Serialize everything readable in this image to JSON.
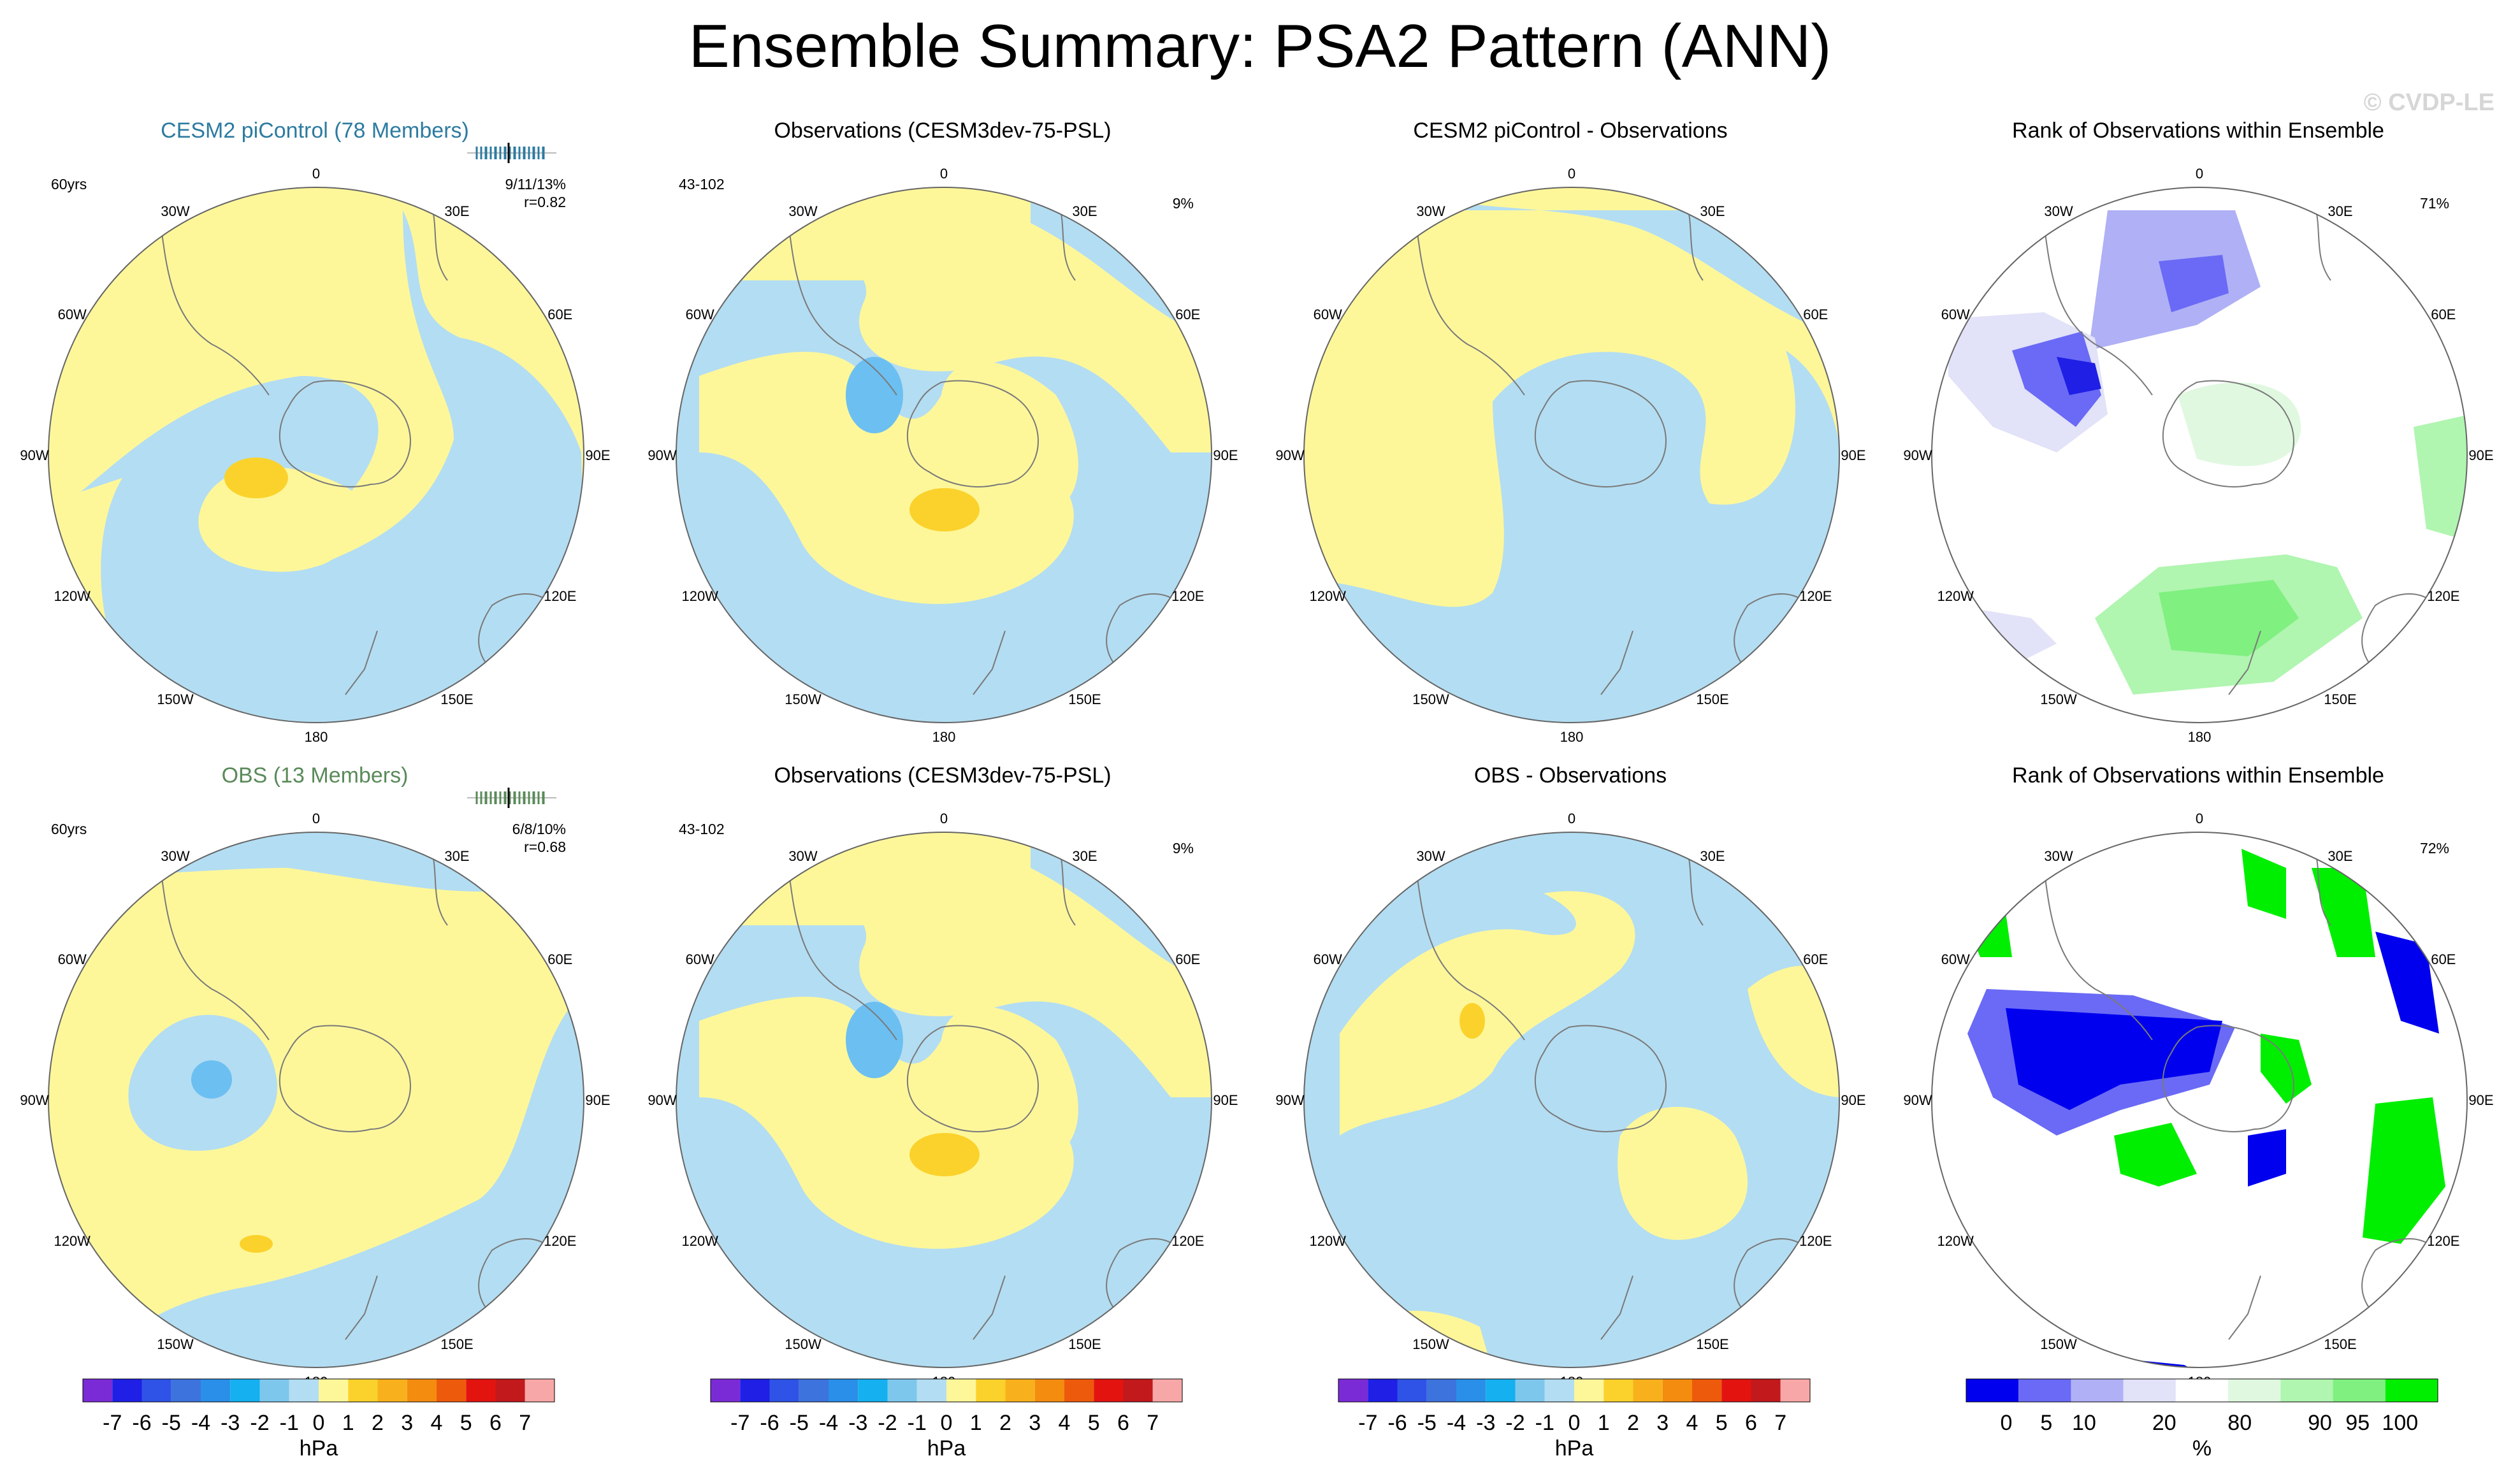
{
  "title": "Ensemble Summary: PSA2 Pattern (ANN)",
  "watermark": "© CVDP-LE",
  "lon_labels": [
    "0",
    "30E",
    "60E",
    "90E",
    "120E",
    "150E",
    "180",
    "150W",
    "120W",
    "90W",
    "60W",
    "30W"
  ],
  "colors": {
    "blue_fill": "#b3ddf2",
    "yellow_fill": "#fef79a",
    "blue_dark": "#6cbff1",
    "yellow_dark": "#fbd22c",
    "coast": "#7a7a7a"
  },
  "panels": [
    {
      "id": "r1c1",
      "title": "CESM2 piControl (78 Members)",
      "title_color": "#2d7ba0",
      "left_label": "60yrs",
      "right_label": "9/11/13%",
      "right_label2": "r=0.82",
      "has_spread": true,
      "spread_color": "#2d7ba0",
      "type": "pattern",
      "variant": 0
    },
    {
      "id": "r1c2",
      "title": "Observations (CESM3dev-75-PSL)",
      "title_color": "#000000",
      "left_label": "43-102",
      "right_label": "9%",
      "type": "pattern",
      "variant": 1
    },
    {
      "id": "r1c3",
      "title": "CESM2 piControl - Observations",
      "title_color": "#000000",
      "type": "pattern",
      "variant": 2
    },
    {
      "id": "r1c4",
      "title": "Rank of Observations within Ensemble",
      "title_color": "#000000",
      "left_label": "",
      "right_label": "71%",
      "type": "rank",
      "variant": 0
    },
    {
      "id": "r2c1",
      "title": "OBS (13 Members)",
      "title_color": "#5a8a5a",
      "left_label": "60yrs",
      "right_label": "6/8/10%",
      "right_label2": "r=0.68",
      "has_spread": true,
      "spread_color": "#5a8a5a",
      "type": "pattern",
      "variant": 3
    },
    {
      "id": "r2c2",
      "title": "Observations (CESM3dev-75-PSL)",
      "title_color": "#000000",
      "left_label": "43-102",
      "right_label": "9%",
      "type": "pattern",
      "variant": 1
    },
    {
      "id": "r2c3",
      "title": "OBS - Observations",
      "title_color": "#000000",
      "type": "pattern",
      "variant": 4
    },
    {
      "id": "r2c4",
      "title": "Rank of Observations within Ensemble",
      "title_color": "#000000",
      "left_label": "",
      "right_label": "72%",
      "type": "rank",
      "variant": 1
    }
  ],
  "chart_data": {
    "type": "heatmap",
    "projection": "south polar stereographic",
    "pressure_colorbar": {
      "unit": "hPa",
      "tick_labels": [
        "-7",
        "-6",
        "-5",
        "-4",
        "-3",
        "-2",
        "-1",
        "0",
        "1",
        "2",
        "3",
        "4",
        "5",
        "6",
        "7"
      ],
      "colors": [
        "#7b2bd6",
        "#1f1fe6",
        "#2f53e6",
        "#3d73dc",
        "#2a8fe8",
        "#14b0f0",
        "#7dc7ec",
        "#b3ddf2",
        "#fef79a",
        "#fbd22c",
        "#f8b11c",
        "#f48c10",
        "#ee5a0c",
        "#e3140f",
        "#c2191c",
        "#f7a7a7"
      ]
    },
    "rank_colorbar": {
      "unit": "%",
      "tick_labels": [
        "0",
        "5",
        "10",
        "20",
        "80",
        "90",
        "95",
        "100"
      ],
      "colors": [
        "#0000ee",
        "#6a6af6",
        "#b0b0f6",
        "#e2e2f8",
        "#ffffff",
        "#e0f8e0",
        "#b0f5b0",
        "#80f080",
        "#00ee00"
      ]
    }
  }
}
